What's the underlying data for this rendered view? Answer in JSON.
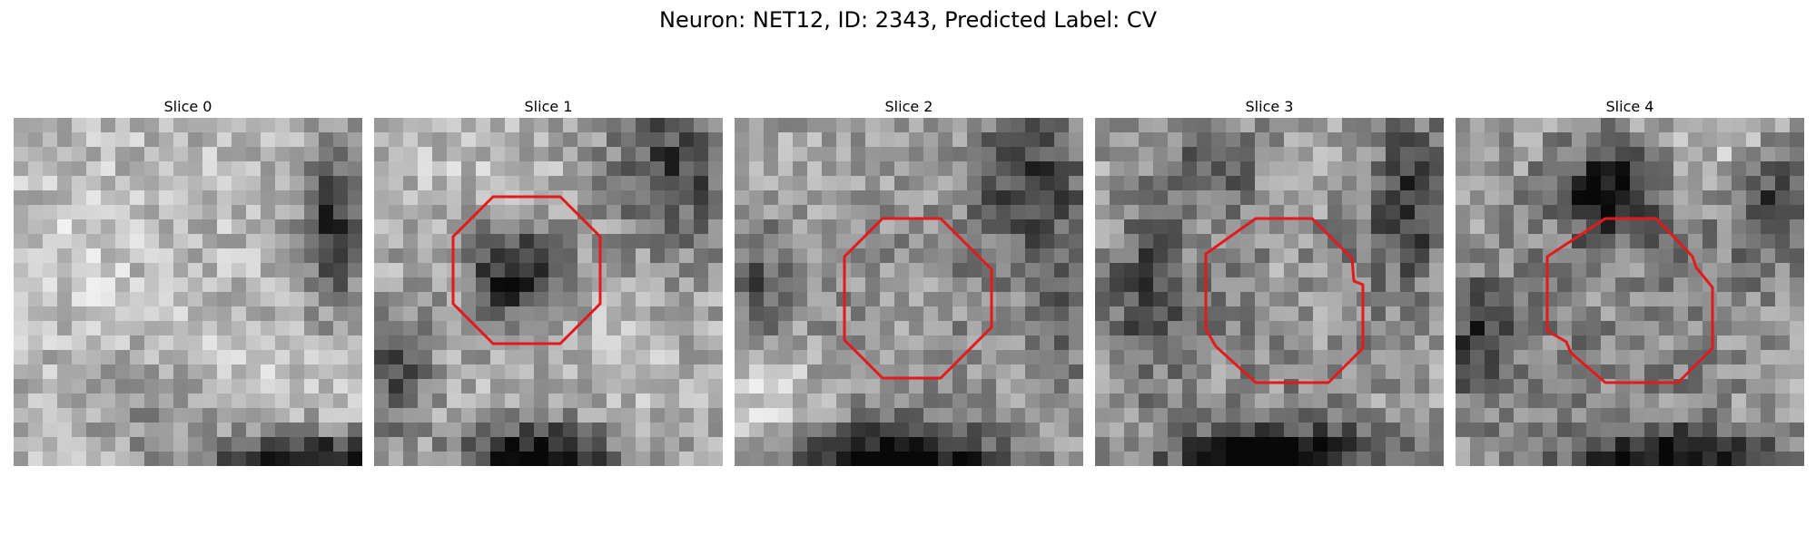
{
  "figure": {
    "title": "Neuron: NET12, ID: 2343, Predicted Label: CV"
  },
  "panels": [
    {
      "title": "Slice 0",
      "has_contour": false
    },
    {
      "title": "Slice 1",
      "has_contour": true
    },
    {
      "title": "Slice 2",
      "has_contour": true
    },
    {
      "title": "Slice 3",
      "has_contour": true
    },
    {
      "title": "Slice 4",
      "has_contour": true
    }
  ],
  "colors": {
    "contour": "#e31a1c"
  }
}
